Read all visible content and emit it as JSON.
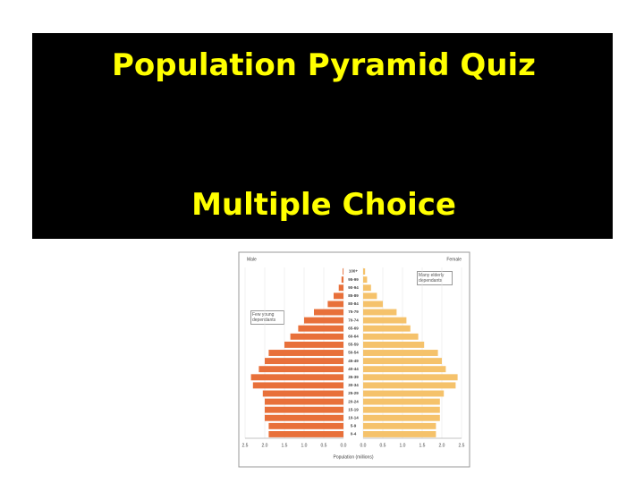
{
  "slide": {
    "title": "Population Pyramid Quiz",
    "subtitle": "Multiple Choice"
  },
  "chart_data": {
    "type": "pyramid",
    "left_label": "Male",
    "right_label": "Female",
    "x_label": "Population (millions)",
    "annotations": [
      "Few young dependants",
      "Many elderly dependants"
    ],
    "categories": [
      "100+",
      "95-99",
      "90-94",
      "85-89",
      "80-84",
      "75-79",
      "70-74",
      "65-69",
      "60-64",
      "55-59",
      "50-54",
      "45-49",
      "40-44",
      "35-39",
      "30-34",
      "25-29",
      "20-24",
      "15-19",
      "10-14",
      "5-9",
      "0-4"
    ],
    "series": [
      {
        "name": "Male",
        "color": "#e8703a",
        "values": [
          0.02,
          0.05,
          0.12,
          0.25,
          0.4,
          0.75,
          1.0,
          1.15,
          1.35,
          1.5,
          1.9,
          2.0,
          2.15,
          2.35,
          2.3,
          2.05,
          2.0,
          2.0,
          2.0,
          1.9,
          1.9
        ]
      },
      {
        "name": "Female",
        "color": "#f5c26b",
        "values": [
          0.05,
          0.1,
          0.2,
          0.35,
          0.5,
          0.85,
          1.1,
          1.2,
          1.4,
          1.55,
          1.9,
          2.0,
          2.1,
          2.4,
          2.35,
          2.05,
          1.95,
          1.95,
          1.95,
          1.85,
          1.85
        ]
      }
    ],
    "xlim": [
      0,
      2.5
    ],
    "xticks": [
      {
        "value": 0,
        "label": "0.0"
      },
      0.5,
      {
        "value": 1,
        "label": "1.0"
      },
      1.5,
      {
        "value": 2,
        "label": "2.0"
      },
      2.5
    ],
    "grid": true
  }
}
